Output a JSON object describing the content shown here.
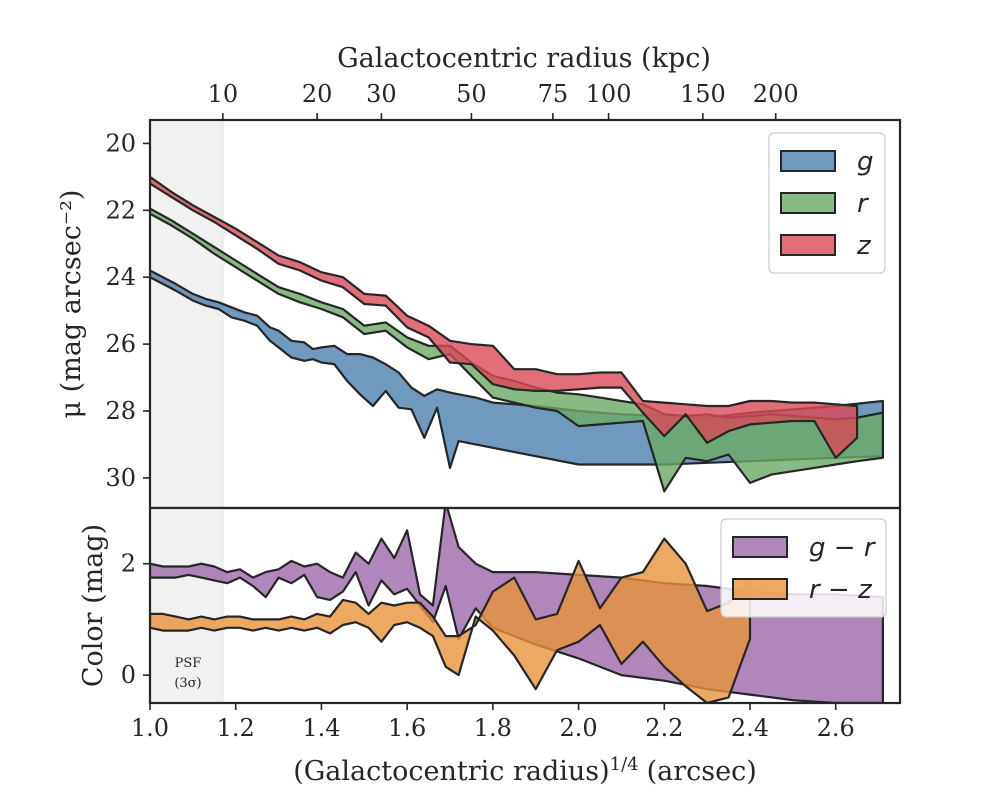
{
  "chart_data": [
    {
      "type": "area",
      "panel": "top",
      "ylabel": "μ (mag arcsec⁻²)",
      "top_xlabel": "Galactocentric radius (kpc)",
      "top_ticks": [
        10,
        20,
        30,
        50,
        75,
        100,
        150,
        200
      ],
      "top_tick_positions_x": [
        1.17,
        1.39,
        1.54,
        1.75,
        1.94,
        2.07,
        2.29,
        2.46
      ],
      "xlim": [
        1.0,
        2.75
      ],
      "ylim": [
        30.9,
        19.3
      ],
      "y_inverted": true,
      "yticks": [
        20,
        22,
        24,
        26,
        28,
        30
      ],
      "psf_region_x": [
        1.0,
        1.17
      ],
      "legend": {
        "position": "top-right",
        "entries": [
          "g",
          "r",
          "z"
        ]
      },
      "series": [
        {
          "name": "g",
          "color": "#4c7fb0",
          "upper": {
            "x": [
              1.0,
              1.03,
              1.06,
              1.1,
              1.13,
              1.16,
              1.19,
              1.22,
              1.25,
              1.28,
              1.3,
              1.33,
              1.36,
              1.38,
              1.4,
              1.43,
              1.46,
              1.49,
              1.52,
              1.55,
              1.58,
              1.61,
              1.64,
              1.67,
              1.7,
              1.72,
              1.76,
              1.8,
              1.9,
              2.0,
              2.1,
              2.2,
              2.3,
              2.4,
              2.5,
              2.6,
              2.71
            ],
            "y": [
              23.8,
              24.0,
              24.2,
              24.5,
              24.65,
              24.75,
              24.9,
              25.05,
              25.15,
              25.5,
              25.6,
              25.9,
              25.95,
              26.15,
              26.1,
              26.05,
              26.3,
              26.3,
              26.4,
              26.6,
              26.85,
              27.3,
              27.55,
              27.35,
              27.45,
              27.5,
              27.6,
              27.75,
              27.85,
              28.0,
              28.1,
              28.15,
              28.2,
              28.05,
              27.95,
              27.85,
              27.7
            ]
          },
          "lower": {
            "x": [
              1.0,
              1.03,
              1.06,
              1.1,
              1.13,
              1.16,
              1.19,
              1.22,
              1.25,
              1.28,
              1.3,
              1.33,
              1.36,
              1.38,
              1.4,
              1.43,
              1.46,
              1.49,
              1.52,
              1.55,
              1.58,
              1.61,
              1.64,
              1.67,
              1.7,
              1.72,
              1.76,
              1.8,
              1.9,
              2.0,
              2.1,
              2.2,
              2.3,
              2.4,
              2.5,
              2.6,
              2.71
            ],
            "y": [
              24.0,
              24.2,
              24.4,
              24.7,
              24.85,
              24.95,
              25.2,
              25.3,
              25.45,
              25.9,
              26.1,
              26.4,
              26.5,
              26.45,
              26.55,
              26.6,
              27.1,
              27.5,
              27.85,
              27.4,
              27.9,
              27.95,
              28.8,
              27.9,
              29.7,
              28.9,
              29.0,
              29.1,
              29.35,
              29.6,
              29.6,
              29.6,
              29.55,
              29.5,
              29.45,
              29.4,
              29.35
            ]
          }
        },
        {
          "name": "r",
          "color": "#6aaa64",
          "upper": {
            "x": [
              1.0,
              1.05,
              1.1,
              1.15,
              1.2,
              1.25,
              1.3,
              1.35,
              1.4,
              1.45,
              1.5,
              1.55,
              1.6,
              1.65,
              1.7,
              1.75,
              1.8,
              1.85,
              1.9,
              1.95,
              2.0,
              2.05,
              2.1,
              2.15,
              2.2,
              2.25,
              2.3,
              2.35,
              2.4,
              2.45,
              2.5,
              2.55,
              2.6,
              2.65,
              2.71
            ],
            "y": [
              21.95,
              22.3,
              22.7,
              23.1,
              23.5,
              23.9,
              24.3,
              24.5,
              24.75,
              24.95,
              25.45,
              25.35,
              25.8,
              26.05,
              26.05,
              26.55,
              26.95,
              27.1,
              27.3,
              27.45,
              27.5,
              27.6,
              27.7,
              27.8,
              28.1,
              28.15,
              28.1,
              28.2,
              28.15,
              28.1,
              28.15,
              28.2,
              28.25,
              28.2,
              28.05
            ]
          },
          "lower": {
            "x": [
              1.0,
              1.05,
              1.1,
              1.15,
              1.2,
              1.25,
              1.3,
              1.35,
              1.4,
              1.45,
              1.5,
              1.55,
              1.6,
              1.65,
              1.7,
              1.75,
              1.8,
              1.85,
              1.9,
              1.95,
              2.0,
              2.05,
              2.1,
              2.15,
              2.2,
              2.25,
              2.3,
              2.35,
              2.4,
              2.45,
              2.5,
              2.55,
              2.6,
              2.65,
              2.71
            ],
            "y": [
              22.1,
              22.45,
              22.85,
              23.3,
              23.7,
              24.1,
              24.5,
              24.75,
              24.95,
              25.2,
              25.7,
              25.6,
              26.1,
              26.45,
              26.3,
              26.95,
              27.6,
              27.75,
              27.9,
              28.0,
              28.45,
              28.4,
              28.35,
              28.3,
              30.4,
              29.4,
              29.5,
              29.3,
              30.15,
              29.9,
              29.8,
              29.7,
              29.6,
              29.5,
              29.4
            ]
          }
        },
        {
          "name": "z",
          "color": "#d94a56",
          "upper": {
            "x": [
              1.0,
              1.05,
              1.1,
              1.15,
              1.2,
              1.25,
              1.3,
              1.35,
              1.4,
              1.45,
              1.5,
              1.55,
              1.6,
              1.65,
              1.7,
              1.75,
              1.8,
              1.85,
              1.9,
              1.95,
              2.0,
              2.05,
              2.1,
              2.15,
              2.2,
              2.25,
              2.3,
              2.35,
              2.4,
              2.45,
              2.5,
              2.55,
              2.6,
              2.65
            ],
            "y": [
              21.0,
              21.45,
              21.85,
              22.2,
              22.55,
              22.95,
              23.35,
              23.55,
              23.85,
              24.0,
              24.5,
              24.55,
              25.15,
              25.45,
              25.9,
              26.0,
              26.05,
              26.75,
              26.75,
              26.9,
              26.9,
              26.85,
              26.85,
              27.7,
              27.75,
              27.8,
              27.85,
              27.85,
              27.7,
              27.7,
              27.75,
              27.75,
              27.8,
              27.85
            ]
          },
          "lower": {
            "x": [
              1.0,
              1.05,
              1.1,
              1.15,
              1.2,
              1.25,
              1.3,
              1.35,
              1.4,
              1.45,
              1.5,
              1.55,
              1.6,
              1.65,
              1.7,
              1.75,
              1.8,
              1.85,
              1.9,
              1.95,
              2.0,
              2.05,
              2.1,
              2.15,
              2.2,
              2.25,
              2.3,
              2.35,
              2.4,
              2.45,
              2.5,
              2.55,
              2.6,
              2.65
            ],
            "y": [
              21.2,
              21.6,
              22.0,
              22.35,
              22.75,
              23.15,
              23.6,
              23.8,
              24.1,
              24.3,
              24.8,
              24.85,
              25.5,
              25.8,
              26.55,
              26.6,
              27.2,
              27.35,
              27.4,
              27.4,
              27.35,
              27.3,
              27.3,
              28.05,
              28.75,
              28.1,
              28.95,
              28.6,
              28.4,
              28.35,
              28.3,
              28.3,
              29.4,
              28.8
            ]
          }
        }
      ]
    },
    {
      "type": "area",
      "panel": "bottom",
      "ylabel": "Color (mag)",
      "xlabel": "(Galactocentric radius)^1/4 (arcsec)",
      "xlabel_base": "(Galactocentric radius)",
      "xlabel_exponent": "1/4",
      "xlabel_unit": "(arcsec)",
      "xlim": [
        1.0,
        2.75
      ],
      "ylim": [
        -0.5,
        3.0
      ],
      "xticks": [
        1.0,
        1.2,
        1.4,
        1.6,
        1.8,
        2.0,
        2.2,
        2.4,
        2.6
      ],
      "xtick_labels": [
        "1.0",
        "1.2",
        "1.4",
        "1.6",
        "1.8",
        "2.0",
        "2.2",
        "2.4",
        "2.6"
      ],
      "yticks": [
        0,
        2
      ],
      "psf_note": [
        "PSF",
        "(3σ)"
      ],
      "legend": {
        "position": "top-right",
        "entries": [
          "g − r",
          "r − z"
        ]
      },
      "series": [
        {
          "name": "g − r",
          "color": "#9b69aa",
          "upper": {
            "x": [
              1.0,
              1.03,
              1.06,
              1.09,
              1.12,
              1.15,
              1.18,
              1.21,
              1.24,
              1.27,
              1.3,
              1.33,
              1.36,
              1.39,
              1.42,
              1.45,
              1.48,
              1.51,
              1.54,
              1.57,
              1.6,
              1.63,
              1.66,
              1.69,
              1.72,
              1.76,
              1.8,
              1.9,
              2.0,
              2.1,
              2.2,
              2.3,
              2.4,
              2.5,
              2.6,
              2.71
            ],
            "y": [
              2.0,
              1.95,
              1.95,
              1.95,
              2.0,
              1.95,
              1.85,
              1.9,
              1.75,
              1.85,
              1.9,
              2.05,
              1.95,
              2.0,
              1.85,
              1.75,
              2.2,
              2.0,
              2.45,
              2.1,
              2.6,
              1.45,
              1.25,
              3.1,
              2.3,
              2.0,
              1.85,
              1.85,
              1.8,
              1.75,
              1.65,
              1.6,
              1.5,
              1.45,
              1.45,
              1.4
            ]
          },
          "lower": {
            "x": [
              1.0,
              1.03,
              1.06,
              1.09,
              1.12,
              1.15,
              1.18,
              1.21,
              1.24,
              1.27,
              1.3,
              1.33,
              1.36,
              1.39,
              1.42,
              1.45,
              1.48,
              1.51,
              1.54,
              1.57,
              1.6,
              1.63,
              1.66,
              1.69,
              1.72,
              1.76,
              1.8,
              1.9,
              2.0,
              2.1,
              2.2,
              2.3,
              2.4,
              2.5,
              2.6,
              2.71
            ],
            "y": [
              1.75,
              1.75,
              1.75,
              1.8,
              1.75,
              1.7,
              1.65,
              1.75,
              1.6,
              1.4,
              1.75,
              1.65,
              1.8,
              1.4,
              1.35,
              1.5,
              1.85,
              1.25,
              1.7,
              1.45,
              1.55,
              1.25,
              0.95,
              1.6,
              0.65,
              1.2,
              0.85,
              0.55,
              0.3,
              0.0,
              -0.1,
              -0.25,
              -0.35,
              -0.45,
              -0.5,
              -0.5
            ]
          }
        },
        {
          "name": "r − z",
          "color": "#e8923a",
          "upper": {
            "x": [
              1.0,
              1.03,
              1.06,
              1.09,
              1.12,
              1.15,
              1.18,
              1.21,
              1.24,
              1.27,
              1.3,
              1.33,
              1.36,
              1.39,
              1.42,
              1.45,
              1.48,
              1.51,
              1.54,
              1.57,
              1.6,
              1.63,
              1.66,
              1.69,
              1.72,
              1.76,
              1.8,
              1.85,
              1.9,
              1.95,
              2.0,
              2.05,
              2.1,
              2.15,
              2.2,
              2.25,
              2.3,
              2.35,
              2.4
            ],
            "y": [
              1.1,
              1.1,
              1.05,
              1.0,
              1.05,
              1.0,
              1.05,
              1.05,
              1.0,
              1.0,
              1.0,
              1.05,
              1.0,
              1.1,
              1.05,
              1.35,
              1.3,
              1.1,
              1.3,
              1.25,
              1.3,
              1.3,
              1.05,
              0.7,
              0.7,
              0.9,
              1.5,
              1.75,
              1.0,
              1.1,
              2.05,
              1.2,
              1.75,
              1.85,
              2.45,
              2.0,
              1.15,
              1.3,
              1.65
            ]
          },
          "lower": {
            "x": [
              1.0,
              1.03,
              1.06,
              1.09,
              1.12,
              1.15,
              1.18,
              1.21,
              1.24,
              1.27,
              1.3,
              1.33,
              1.36,
              1.39,
              1.42,
              1.45,
              1.48,
              1.51,
              1.54,
              1.57,
              1.6,
              1.63,
              1.66,
              1.69,
              1.72,
              1.76,
              1.8,
              1.85,
              1.9,
              1.95,
              2.0,
              2.05,
              2.1,
              2.15,
              2.2,
              2.25,
              2.3,
              2.35,
              2.4
            ],
            "y": [
              0.85,
              0.8,
              0.8,
              0.8,
              0.85,
              0.8,
              0.85,
              0.85,
              0.8,
              0.85,
              0.8,
              0.85,
              0.8,
              0.85,
              0.75,
              0.9,
              0.95,
              0.85,
              0.6,
              0.9,
              0.95,
              0.85,
              0.7,
              0.15,
              0.0,
              1.05,
              0.8,
              0.35,
              -0.25,
              0.45,
              0.6,
              0.9,
              0.2,
              0.6,
              0.15,
              -0.2,
              -0.5,
              -0.4,
              0.65
            ]
          }
        }
      ]
    }
  ]
}
